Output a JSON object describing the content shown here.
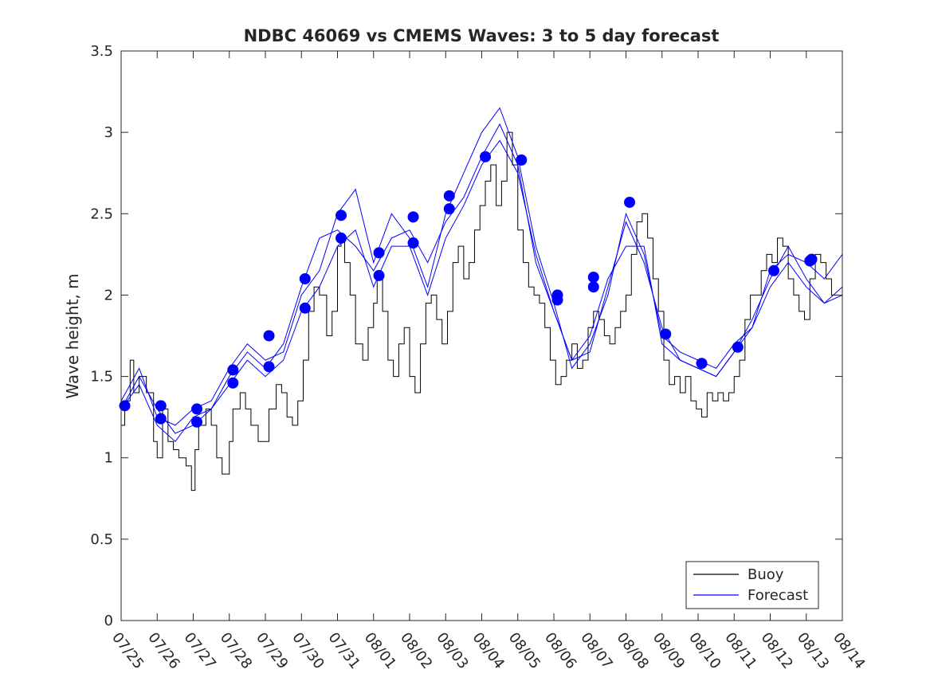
{
  "chart_data": {
    "type": "line",
    "title": "NDBC 46069 vs CMEMS Waves: 3 to 5 day forecast",
    "xlabel": "",
    "ylabel": "Wave height, m",
    "ylim": [
      0,
      3.5
    ],
    "yticks": [
      0,
      0.5,
      1,
      1.5,
      2,
      2.5,
      3,
      3.5
    ],
    "ytick_labels": [
      "0",
      "0.5",
      "1",
      "1.5",
      "2",
      "2.5",
      "3",
      "3.5"
    ],
    "xlim": [
      "07/25",
      "08/14"
    ],
    "xtick_labels": [
      "07/25",
      "07/26",
      "07/27",
      "07/28",
      "07/29",
      "07/30",
      "07/31",
      "08/01",
      "08/02",
      "08/03",
      "08/04",
      "08/05",
      "08/06",
      "08/07",
      "08/08",
      "08/09",
      "08/10",
      "08/11",
      "08/12",
      "08/13",
      "08/14"
    ],
    "grid": false,
    "legend": {
      "position": "bottom-right",
      "entries": [
        "Buoy",
        "Forecast"
      ]
    },
    "colors": {
      "buoy": "#000000",
      "forecast": "#0000ff",
      "marker": "#0000ff",
      "axis": "#262626"
    },
    "series": [
      {
        "name": "Buoy",
        "x_day_offset_from_07_25": [
          0,
          0.1,
          0.25,
          0.35,
          0.5,
          0.7,
          0.9,
          1.0,
          1.15,
          1.3,
          1.45,
          1.6,
          1.8,
          1.95,
          2.05,
          2.15,
          2.35,
          2.5,
          2.65,
          2.8,
          3.0,
          3.1,
          3.3,
          3.45,
          3.6,
          3.8,
          3.95,
          4.1,
          4.3,
          4.45,
          4.6,
          4.75,
          4.9,
          5.05,
          5.2,
          5.35,
          5.5,
          5.7,
          5.85,
          6.0,
          6.1,
          6.2,
          6.35,
          6.5,
          6.7,
          6.85,
          7.0,
          7.1,
          7.25,
          7.4,
          7.55,
          7.7,
          7.85,
          8.0,
          8.15,
          8.3,
          8.45,
          8.6,
          8.75,
          8.9,
          9.05,
          9.2,
          9.35,
          9.5,
          9.65,
          9.8,
          9.95,
          10.1,
          10.25,
          10.4,
          10.55,
          10.7,
          10.85,
          11.0,
          11.15,
          11.3,
          11.45,
          11.6,
          11.75,
          11.9,
          12.05,
          12.2,
          12.35,
          12.5,
          12.65,
          12.8,
          12.95,
          13.1,
          13.25,
          13.4,
          13.55,
          13.7,
          13.85,
          14.0,
          14.15,
          14.3,
          14.45,
          14.6,
          14.75,
          14.9,
          15.05,
          15.2,
          15.35,
          15.5,
          15.65,
          15.8,
          15.95,
          16.1,
          16.25,
          16.4,
          16.55,
          16.7,
          16.85,
          17.0,
          17.15,
          17.3,
          17.45,
          17.6,
          17.75,
          17.9,
          18.05,
          18.2,
          18.35,
          18.5,
          18.65,
          18.8,
          18.95,
          19.1,
          19.25,
          19.4,
          19.55,
          19.7,
          19.85,
          20.0
        ],
        "values": [
          1.2,
          1.35,
          1.6,
          1.4,
          1.5,
          1.4,
          1.1,
          1.0,
          1.3,
          1.1,
          1.05,
          1.0,
          0.95,
          0.8,
          1.05,
          1.2,
          1.3,
          1.2,
          1.0,
          0.9,
          1.1,
          1.3,
          1.4,
          1.3,
          1.2,
          1.1,
          1.1,
          1.3,
          1.45,
          1.4,
          1.25,
          1.2,
          1.35,
          1.6,
          1.9,
          2.05,
          2.0,
          1.75,
          1.9,
          2.3,
          2.35,
          2.2,
          2.0,
          1.7,
          1.6,
          1.8,
          1.95,
          2.1,
          1.9,
          1.6,
          1.5,
          1.7,
          1.8,
          1.5,
          1.4,
          1.7,
          1.95,
          2.0,
          1.85,
          1.7,
          1.9,
          2.2,
          2.3,
          2.1,
          2.2,
          2.4,
          2.55,
          2.7,
          2.8,
          2.55,
          2.7,
          3.0,
          2.8,
          2.4,
          2.2,
          2.05,
          2.0,
          1.95,
          1.8,
          1.6,
          1.45,
          1.5,
          1.6,
          1.7,
          1.55,
          1.6,
          1.8,
          1.9,
          1.85,
          1.75,
          1.7,
          1.8,
          1.9,
          2.0,
          2.25,
          2.45,
          2.5,
          2.35,
          2.1,
          1.9,
          1.6,
          1.45,
          1.5,
          1.4,
          1.5,
          1.35,
          1.3,
          1.25,
          1.4,
          1.35,
          1.4,
          1.35,
          1.4,
          1.5,
          1.6,
          1.85,
          2.0,
          2.0,
          2.15,
          2.25,
          2.2,
          2.35,
          2.3,
          2.1,
          2.0,
          1.9,
          1.85,
          2.1,
          2.25,
          2.2,
          2.1,
          2.0
        ]
      },
      {
        "name": "Forecast",
        "runs": [
          {
            "x": [
              0.0,
              0.5,
              1.0,
              1.5,
              2.0,
              2.5,
              3.0,
              3.5,
              4.0,
              4.5,
              5.0,
              5.5,
              6.0,
              6.5,
              7.0,
              7.5,
              8.0,
              8.5,
              9.0,
              9.5,
              10.0,
              10.5,
              11.0,
              11.5,
              12.0,
              12.5,
              13.0,
              13.5,
              14.0,
              14.5,
              15.0,
              15.5,
              16.0,
              16.5,
              17.0,
              17.5,
              18.0,
              18.5,
              19.0,
              19.5,
              20.0
            ],
            "values": [
              1.3,
              1.5,
              1.3,
              1.15,
              1.2,
              1.3,
              1.5,
              1.65,
              1.55,
              1.7,
              2.05,
              2.35,
              2.4,
              2.3,
              2.15,
              2.35,
              2.4,
              2.2,
              2.45,
              2.6,
              2.85,
              3.05,
              2.8,
              2.2,
              1.9,
              1.6,
              1.75,
              2.1,
              2.3,
              2.3,
              1.7,
              1.6,
              1.55,
              1.5,
              1.65,
              1.85,
              2.1,
              2.3,
              2.1,
              1.95,
              2.05
            ]
          },
          {
            "x": [
              0.0,
              0.5,
              1.0,
              1.5,
              2.0,
              2.5,
              3.0,
              3.5,
              4.0,
              4.5,
              5.0,
              5.5,
              6.0,
              6.5,
              7.0,
              7.5,
              8.0,
              8.5,
              9.0,
              9.5,
              10.0,
              10.5,
              11.0,
              11.5,
              12.0,
              12.5,
              13.0,
              13.5,
              14.0,
              14.5,
              15.0,
              15.5,
              16.0,
              16.5,
              17.0,
              17.5,
              18.0,
              18.5,
              19.0,
              19.5,
              20.0
            ],
            "values": [
              1.35,
              1.55,
              1.25,
              1.2,
              1.3,
              1.35,
              1.55,
              1.7,
              1.6,
              1.65,
              2.0,
              2.15,
              2.5,
              2.65,
              2.2,
              2.5,
              2.35,
              2.05,
              2.5,
              2.75,
              3.0,
              3.15,
              2.85,
              2.3,
              1.95,
              1.55,
              1.7,
              2.0,
              2.5,
              2.25,
              1.75,
              1.65,
              1.6,
              1.55,
              1.7,
              1.8,
              2.15,
              2.25,
              2.2,
              2.1,
              2.25
            ]
          },
          {
            "x": [
              0.0,
              0.5,
              1.0,
              1.5,
              2.0,
              2.5,
              3.0,
              3.5,
              4.0,
              4.5,
              5.0,
              5.5,
              6.0,
              6.5,
              7.0,
              7.5,
              8.0,
              8.5,
              9.0,
              9.5,
              10.0,
              10.5,
              11.0,
              11.5,
              12.0,
              12.5,
              13.0,
              13.5,
              14.0,
              14.5,
              15.0,
              15.5,
              16.0,
              16.5,
              17.0,
              17.5,
              18.0,
              18.5,
              19.0,
              19.5,
              20.0
            ],
            "values": [
              1.3,
              1.45,
              1.2,
              1.1,
              1.25,
              1.3,
              1.45,
              1.6,
              1.5,
              1.6,
              1.9,
              2.05,
              2.3,
              2.4,
              2.05,
              2.3,
              2.3,
              2.0,
              2.35,
              2.55,
              2.8,
              2.95,
              2.75,
              2.25,
              1.9,
              1.6,
              1.65,
              2.05,
              2.45,
              2.2,
              1.8,
              1.6,
              1.55,
              1.5,
              1.65,
              1.8,
              2.05,
              2.2,
              2.05,
              1.95,
              2.0
            ]
          }
        ]
      },
      {
        "name": "Forecast start markers",
        "x": [
          0.1,
          1.1,
          1.1,
          2.1,
          2.1,
          3.1,
          3.1,
          4.1,
          4.1,
          5.1,
          5.1,
          6.1,
          6.1,
          7.15,
          7.15,
          8.1,
          8.1,
          9.1,
          9.1,
          10.1,
          11.1,
          12.1,
          12.1,
          13.1,
          13.1,
          14.1,
          15.1,
          16.1,
          17.1,
          18.1,
          19.1,
          19.15
        ],
        "values": [
          1.32,
          1.32,
          1.24,
          1.3,
          1.22,
          1.54,
          1.46,
          1.75,
          1.56,
          2.1,
          1.92,
          2.49,
          2.35,
          2.26,
          2.12,
          2.48,
          2.32,
          2.61,
          2.53,
          2.85,
          2.83,
          2.0,
          1.97,
          2.11,
          2.05,
          2.57,
          1.76,
          1.58,
          1.68,
          2.15,
          2.21,
          2.22
        ]
      }
    ]
  }
}
